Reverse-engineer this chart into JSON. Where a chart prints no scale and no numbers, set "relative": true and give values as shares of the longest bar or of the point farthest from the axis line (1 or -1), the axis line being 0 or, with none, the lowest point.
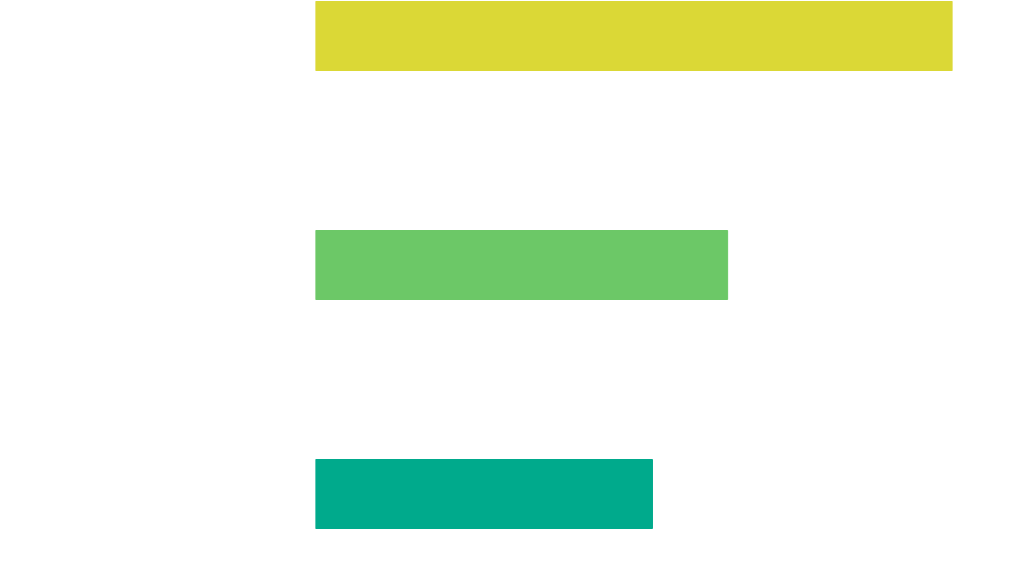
{
  "chart_data": {
    "type": "bar",
    "orientation": "horizontal",
    "relative": true,
    "categories": [
      null,
      null,
      null
    ],
    "values": [
      1,
      0.647,
      0.529
    ],
    "colors": [
      "#dbd836",
      "#6cc867",
      "#00aa8c"
    ]
  }
}
